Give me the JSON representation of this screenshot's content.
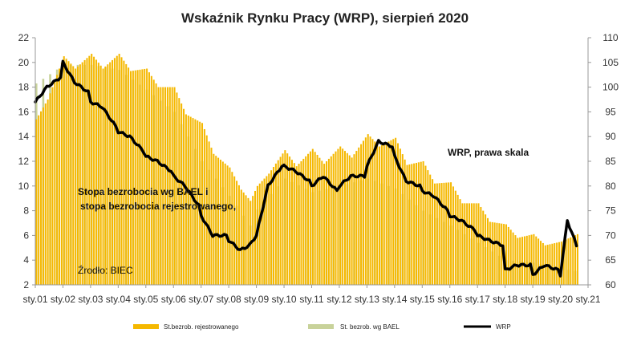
{
  "chart_data": {
    "type": "bar+line",
    "title": "Wskaźnik Rynku Pracy (WRP), sierpień 2020",
    "x_tick_labels": [
      "sty.01",
      "sty.02",
      "sty.03",
      "sty.04",
      "sty.05",
      "sty.06",
      "sty.07",
      "sty.08",
      "sty.09",
      "sty.10",
      "sty.11",
      "sty.12",
      "sty.13",
      "sty.14",
      "sty.15",
      "sty.16",
      "sty.17",
      "sty.18",
      "sty.19",
      "sty.20",
      "sty.21"
    ],
    "left_axis": {
      "ylim": [
        2,
        22
      ],
      "ticks": [
        2,
        4,
        6,
        8,
        10,
        12,
        14,
        16,
        18,
        20,
        22
      ]
    },
    "right_axis": {
      "ylim": [
        60,
        110
      ],
      "ticks": [
        60,
        65,
        70,
        75,
        80,
        85,
        90,
        95,
        100,
        105,
        110
      ]
    },
    "annotations": {
      "left_label_line1": "Stopa bezrobocia wg BAEL i",
      "left_label_line2": "stopa bezrobocia rejestrowanego,",
      "wrp_label": "WRP, prawa skala",
      "source": "Źrodło: BIEC"
    },
    "series": [
      {
        "name": "St.bezrob. rejestrowanego",
        "axis": "left",
        "color": "#f5b800",
        "anchors": [
          [
            "2001-01",
            15.4
          ],
          [
            "2001-06",
            17.0
          ],
          [
            "2002-01",
            20.5
          ],
          [
            "2002-06",
            19.5
          ],
          [
            "2003-01",
            20.7
          ],
          [
            "2003-06",
            19.5
          ],
          [
            "2004-01",
            20.7
          ],
          [
            "2004-06",
            19.3
          ],
          [
            "2005-01",
            19.5
          ],
          [
            "2005-06",
            18.0
          ],
          [
            "2006-01",
            18.0
          ],
          [
            "2006-06",
            15.8
          ],
          [
            "2007-01",
            15.1
          ],
          [
            "2007-06",
            12.6
          ],
          [
            "2008-01",
            11.5
          ],
          [
            "2008-06",
            9.7
          ],
          [
            "2008-10",
            8.8
          ],
          [
            "2009-01",
            10.0
          ],
          [
            "2009-06",
            11.0
          ],
          [
            "2010-01",
            12.9
          ],
          [
            "2010-06",
            11.6
          ],
          [
            "2011-01",
            13.0
          ],
          [
            "2011-06",
            11.8
          ],
          [
            "2012-01",
            13.2
          ],
          [
            "2012-06",
            12.3
          ],
          [
            "2013-01",
            14.2
          ],
          [
            "2013-06",
            13.2
          ],
          [
            "2014-01",
            13.9
          ],
          [
            "2014-06",
            11.7
          ],
          [
            "2015-01",
            12.0
          ],
          [
            "2015-06",
            10.2
          ],
          [
            "2016-01",
            10.3
          ],
          [
            "2016-06",
            8.6
          ],
          [
            "2017-01",
            8.6
          ],
          [
            "2017-06",
            7.1
          ],
          [
            "2018-01",
            6.9
          ],
          [
            "2018-06",
            5.8
          ],
          [
            "2019-01",
            6.1
          ],
          [
            "2019-06",
            5.2
          ],
          [
            "2020-01",
            5.5
          ],
          [
            "2020-08",
            6.1
          ]
        ]
      },
      {
        "name": "St. bezrob. wg BAEL",
        "axis": "left",
        "color": "#c8d29a",
        "anchors": [
          [
            "2001-01",
            18.3
          ],
          [
            "2002-01",
            19.8
          ],
          [
            "2003-01",
            19.8
          ],
          [
            "2004-01",
            19.4
          ],
          [
            "2005-01",
            17.8
          ],
          [
            "2006-01",
            16.0
          ],
          [
            "2007-01",
            12.0
          ],
          [
            "2008-01",
            9.2
          ],
          [
            "2008-10",
            6.8
          ],
          [
            "2009-01",
            8.1
          ],
          [
            "2010-01",
            10.6
          ],
          [
            "2011-01",
            9.5
          ],
          [
            "2012-01",
            10.0
          ],
          [
            "2013-01",
            10.6
          ],
          [
            "2014-01",
            9.8
          ],
          [
            "2015-01",
            8.0
          ],
          [
            "2016-01",
            6.8
          ],
          [
            "2017-01",
            5.4
          ],
          [
            "2018-01",
            4.0
          ],
          [
            "2019-01",
            3.8
          ],
          [
            "2020-01",
            3.3
          ],
          [
            "2020-08",
            3.1
          ]
        ]
      },
      {
        "name": "WRP",
        "axis": "right",
        "color": "#000000",
        "anchors": [
          [
            "2001-01",
            97
          ],
          [
            "2001-06",
            100
          ],
          [
            "2001-12",
            102
          ],
          [
            "2002-01",
            105
          ],
          [
            "2002-06",
            101
          ],
          [
            "2002-12",
            99
          ],
          [
            "2003-01",
            97
          ],
          [
            "2003-06",
            96
          ],
          [
            "2003-12",
            92
          ],
          [
            "2004-01",
            91
          ],
          [
            "2004-06",
            90
          ],
          [
            "2004-12",
            87
          ],
          [
            "2005-01",
            86
          ],
          [
            "2005-06",
            85
          ],
          [
            "2005-12",
            83
          ],
          [
            "2006-01",
            82
          ],
          [
            "2006-06",
            80
          ],
          [
            "2006-12",
            76
          ],
          [
            "2007-01",
            74
          ],
          [
            "2007-06",
            70
          ],
          [
            "2007-12",
            70
          ],
          [
            "2008-01",
            69
          ],
          [
            "2008-06",
            67
          ],
          [
            "2008-10",
            68
          ],
          [
            "2009-01",
            70
          ],
          [
            "2009-06",
            80
          ],
          [
            "2009-12",
            84
          ],
          [
            "2010-01",
            84
          ],
          [
            "2010-06",
            83
          ],
          [
            "2010-12",
            81
          ],
          [
            "2011-01",
            80
          ],
          [
            "2011-06",
            82
          ],
          [
            "2011-12",
            79
          ],
          [
            "2012-01",
            80
          ],
          [
            "2012-06",
            82
          ],
          [
            "2012-12",
            82
          ],
          [
            "2013-01",
            84
          ],
          [
            "2013-06",
            89
          ],
          [
            "2013-12",
            88
          ],
          [
            "2014-01",
            86
          ],
          [
            "2014-06",
            81
          ],
          [
            "2014-12",
            80
          ],
          [
            "2015-01",
            79
          ],
          [
            "2015-06",
            78
          ],
          [
            "2015-12",
            75
          ],
          [
            "2016-01",
            74
          ],
          [
            "2016-06",
            73
          ],
          [
            "2016-12",
            71
          ],
          [
            "2017-01",
            70
          ],
          [
            "2017-06",
            69
          ],
          [
            "2017-12",
            68
          ],
          [
            "2018-01",
            63
          ],
          [
            "2018-06",
            64
          ],
          [
            "2018-12",
            64
          ],
          [
            "2019-01",
            62
          ],
          [
            "2019-06",
            64
          ],
          [
            "2019-12",
            63
          ],
          [
            "2020-01",
            62
          ],
          [
            "2020-04",
            73
          ],
          [
            "2020-08",
            68
          ]
        ]
      }
    ],
    "legend_position": "bottom"
  }
}
